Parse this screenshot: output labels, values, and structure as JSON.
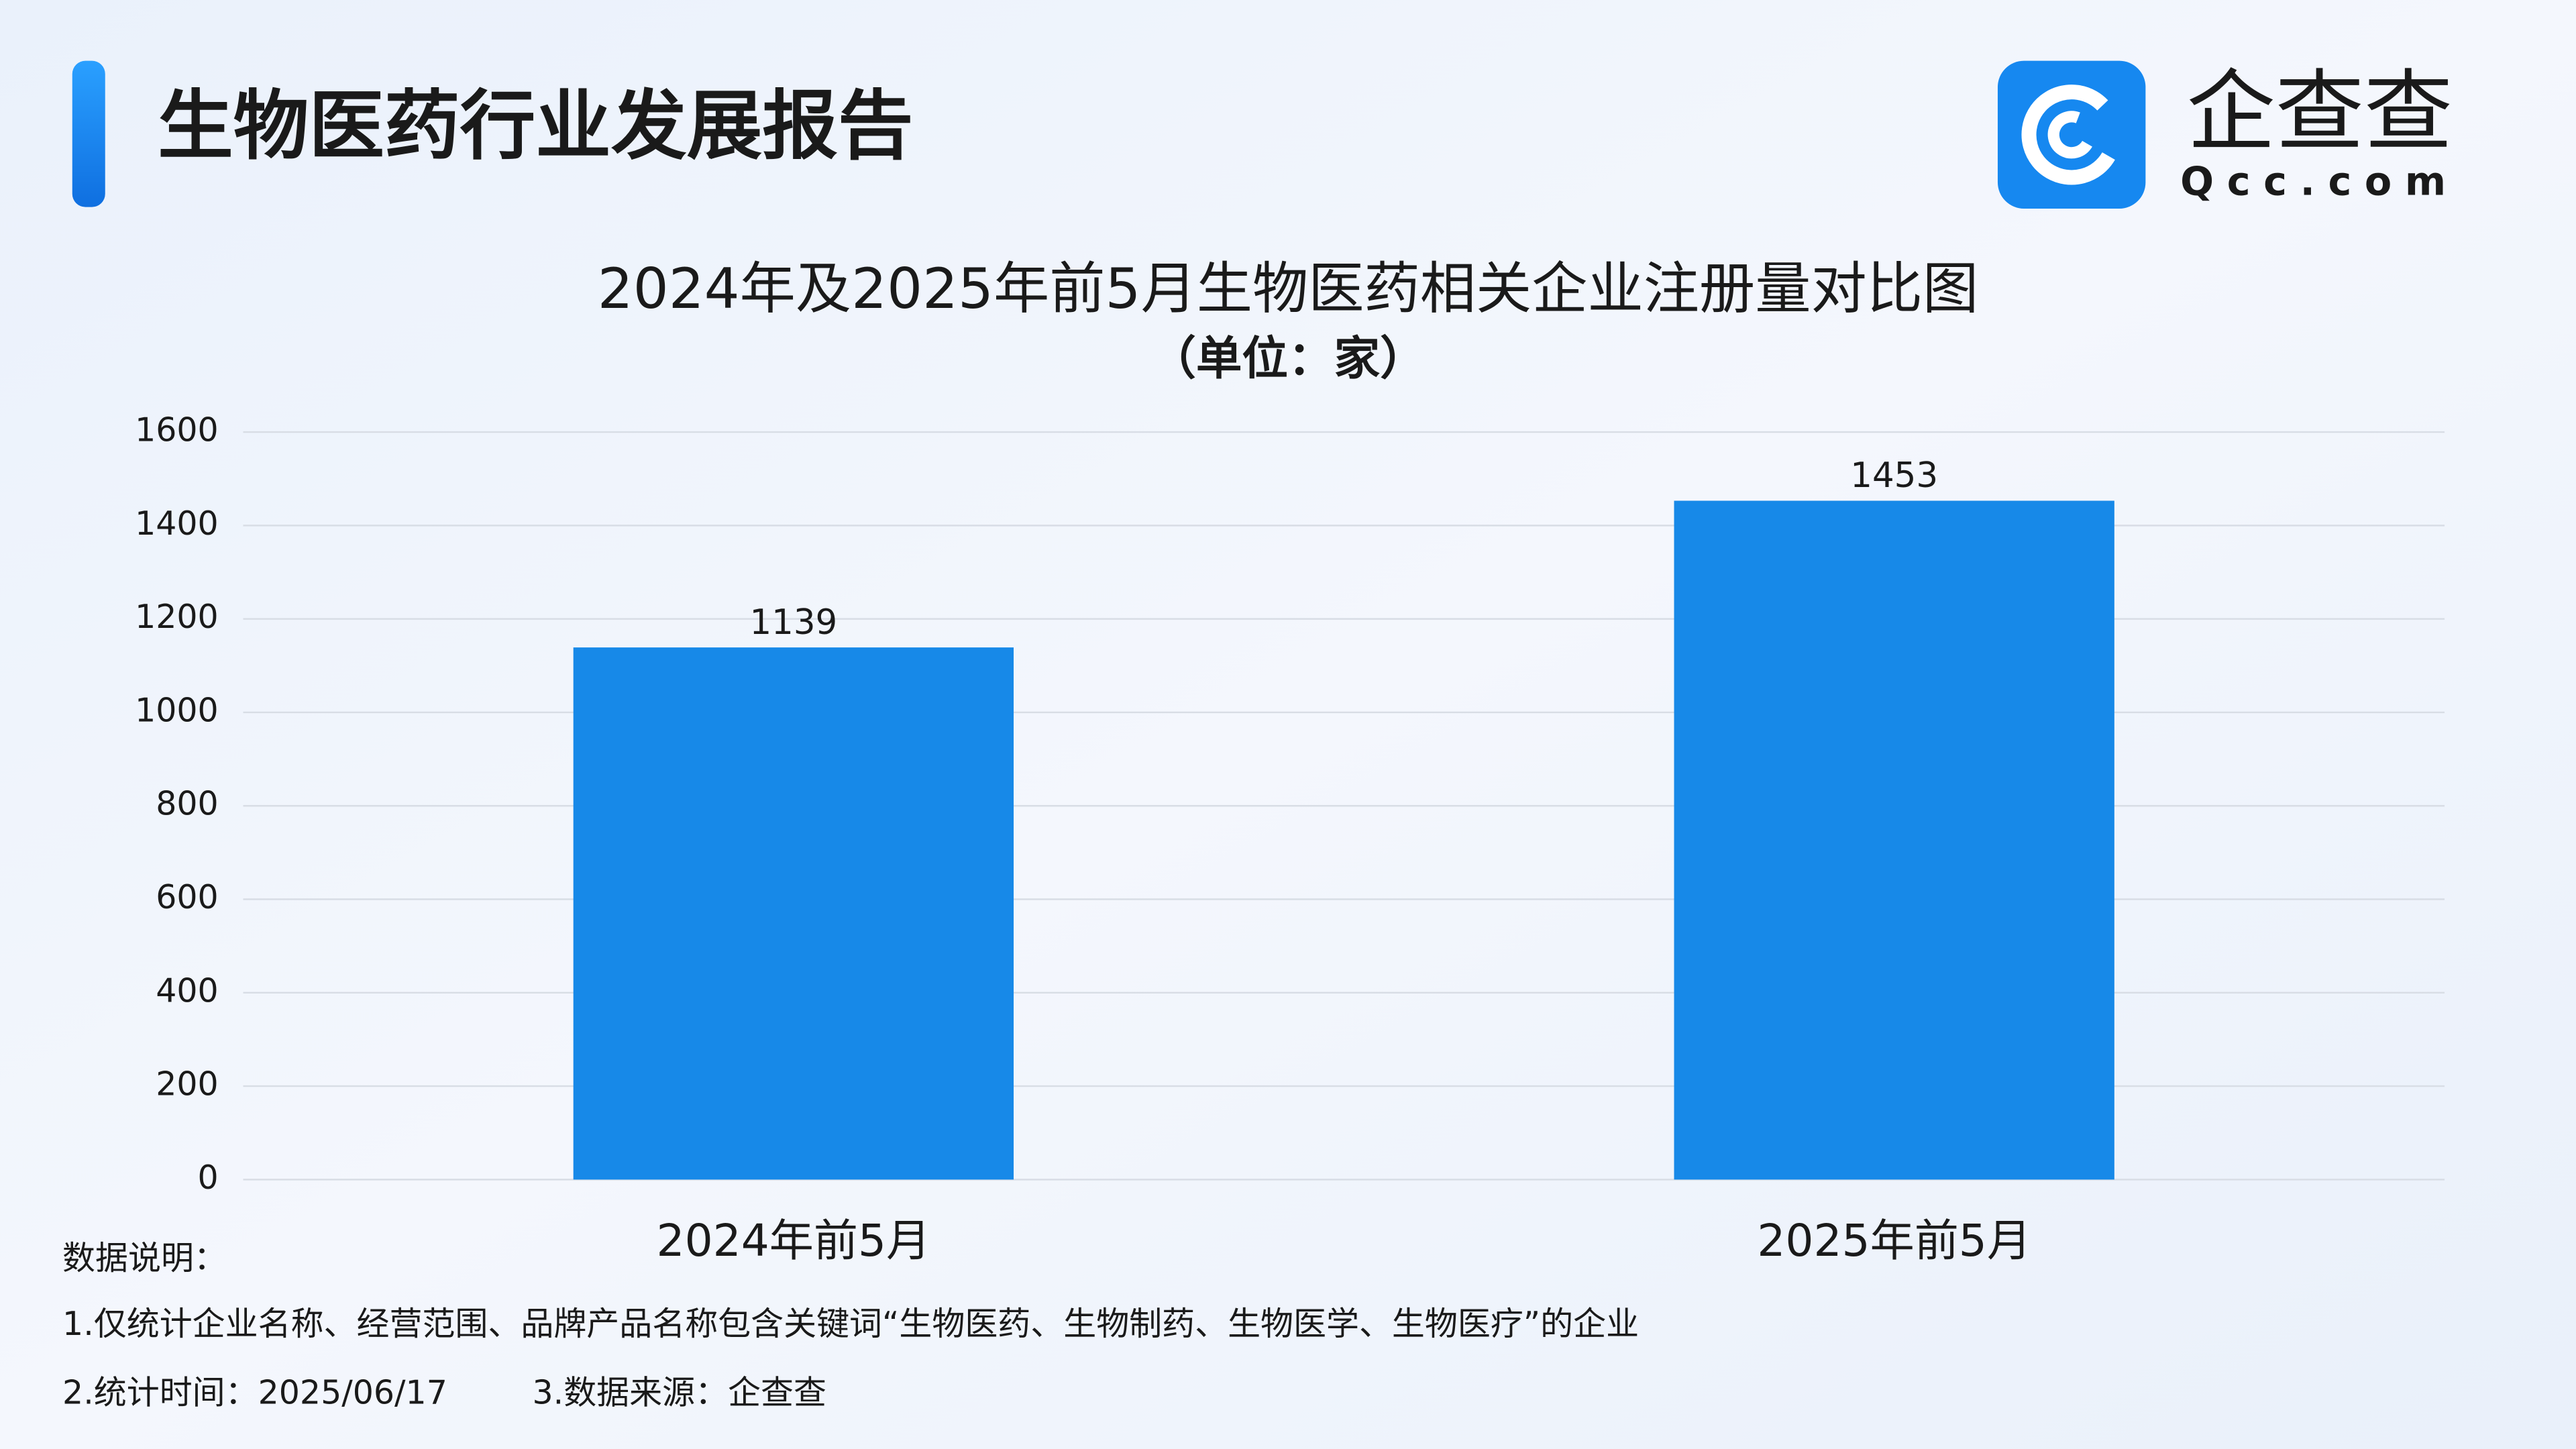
{
  "header": {
    "title": "生物医药行业发展报告",
    "logo_name": "企查查",
    "logo_domain": "Qcc.com"
  },
  "chart_data": {
    "type": "bar",
    "title": "2024年及2025年前5月生物医药相关企业注册量对比图",
    "subtitle": "（单位：家）",
    "categories": [
      "2024年前5月",
      "2025年前5月"
    ],
    "values": [
      1139,
      1453
    ],
    "color": "#1789e8",
    "ylim": [
      0,
      1600
    ],
    "yticks": [
      0,
      200,
      400,
      600,
      800,
      1000,
      1200,
      1400,
      1600
    ],
    "grid": true
  },
  "notes": [
    "数据说明：",
    "1.仅统计企业名称、经营范围、品牌产品名称包含关键词“生物医药、生物制药、生物医学、生物医疗”的企业",
    "2.统计时间：2025/06/17",
    "3.数据来源：企查查"
  ]
}
